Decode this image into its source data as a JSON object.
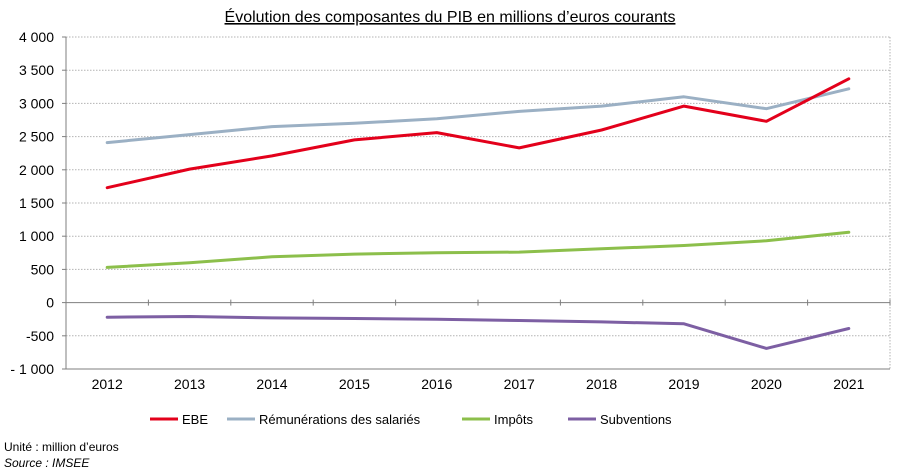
{
  "chart_data": {
    "type": "line",
    "title": "Évolution des composantes du PIB en millions d’euros courants",
    "categories": [
      "2012",
      "2013",
      "2014",
      "2015",
      "2016",
      "2017",
      "2018",
      "2019",
      "2020",
      "2021"
    ],
    "y_ticks": [
      "4 000",
      "3 500",
      "3 000",
      "2 500",
      "2 000",
      "1 500",
      "1 000",
      "500",
      "0",
      "-500",
      "- 1 000"
    ],
    "ylim": [
      -1000,
      4000
    ],
    "grid": true,
    "legend_position": "bottom",
    "series": [
      {
        "name": "EBE",
        "color": "#e3001b",
        "values": [
          1730,
          2010,
          2210,
          2450,
          2560,
          2330,
          2600,
          2960,
          2730,
          3370
        ]
      },
      {
        "name": "Rémunérations des salariés",
        "color": "#9bb0c4",
        "values": [
          2410,
          2530,
          2650,
          2700,
          2770,
          2880,
          2960,
          3100,
          2920,
          3220
        ]
      },
      {
        "name": "Impôts",
        "color": "#8cbf4b",
        "values": [
          530,
          600,
          690,
          730,
          750,
          760,
          810,
          860,
          930,
          1060
        ]
      },
      {
        "name": "Subventions",
        "color": "#7d5fa3",
        "values": [
          -220,
          -210,
          -230,
          -240,
          -250,
          -270,
          -290,
          -320,
          -690,
          -390
        ]
      }
    ]
  },
  "footer": {
    "unit": "Unité : million d’euros",
    "source": "Source : IMSEE"
  }
}
